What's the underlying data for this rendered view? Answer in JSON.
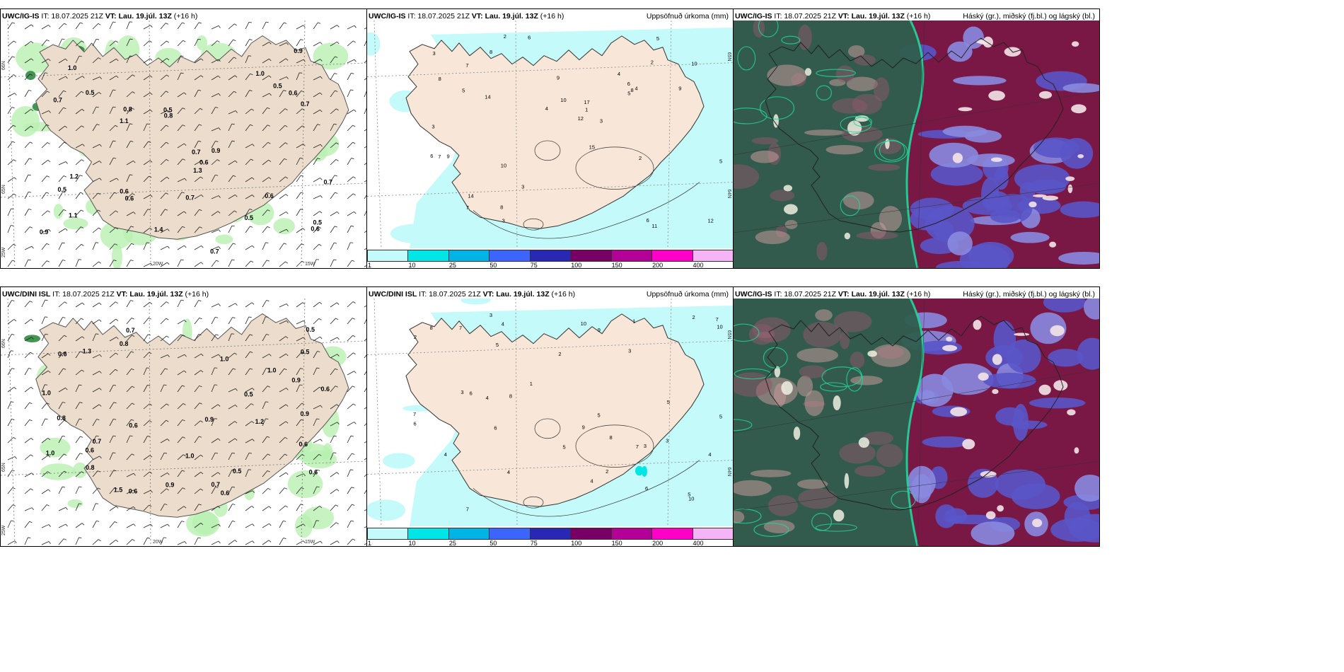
{
  "panels": [
    {
      "model": "UWC/IG-IS",
      "it": "IT: 18.07.2025 21Z",
      "vt": "VT: Lau. 19.júl. 13Z",
      "lead": "(+16 h)",
      "right": "",
      "kind": "wind",
      "labels": [
        "66N",
        "65N",
        "25W",
        "20W",
        "15W"
      ]
    },
    {
      "model": "UWC/IG-IS",
      "it": "IT: 18.07.2025 21Z",
      "vt": "VT: Lau. 19.júl. 13Z",
      "lead": "(+16 h)",
      "right": "Uppsöfnuð úrkoma (mm)",
      "kind": "precip",
      "labels": [
        "65N",
        "64N"
      ]
    },
    {
      "model": "UWC/IG-IS",
      "it": "IT: 18.07.2025 21Z",
      "vt": "VT: Lau. 19.júl. 13Z",
      "lead": "(+16 h)",
      "right": "Háský (gr.), miðský (fj.bl.) og lágský (bl.)",
      "kind": "cloud",
      "labels": []
    },
    {
      "model": "UWC/DINI ISL",
      "it": "IT: 18.07.2025 21Z",
      "vt": "VT: Lau. 19.júl. 13Z",
      "lead": "(+16 h)",
      "right": "",
      "kind": "wind",
      "labels": [
        "66N",
        "65N",
        "25W",
        "20W",
        "15W"
      ]
    },
    {
      "model": "UWC/DINI ISL",
      "it": "IT: 18.07.2025 21Z",
      "vt": "VT: Lau. 19.júl. 13Z",
      "lead": "(+16 h)",
      "right": "Uppsöfnuð úrkoma (mm)",
      "kind": "precip",
      "labels": [
        "65N",
        "64N"
      ]
    },
    {
      "model": "UWC/IG-IS",
      "it": "IT: 18.07.2025 21Z",
      "vt": "VT: Lau. 19.júl. 13Z",
      "lead": "(+16 h)",
      "right": "Háský (gr.), miðský (fj.bl.) og lágský (bl.)",
      "kind": "cloud",
      "labels": []
    }
  ],
  "colorbar": {
    "ticks": [
      "1",
      "10",
      "25",
      "50",
      "75",
      "100",
      "150",
      "200",
      "400"
    ],
    "colors": [
      "#c4fafa",
      "#00e6e6",
      "#00b4e6",
      "#3c64ff",
      "#2828b4",
      "#780064",
      "#b40096",
      "#ff00c8",
      "#f5b4f5"
    ]
  },
  "wind_values": {
    "p0": [
      "0.7",
      "0.7",
      "0.5",
      "1.1",
      "0.6",
      "0.8",
      "1.0",
      "0.7",
      "1.2",
      "0.5",
      "0.6",
      "0.9",
      "1.4",
      "0.5",
      "0.7",
      "1.3",
      "1.1",
      "0.6",
      "0.5",
      "0.5",
      "0.6",
      "0.8",
      "0.7",
      "1.0",
      "0.9",
      "0.6",
      "0.7",
      "0.5",
      "0.9",
      "0.6"
    ],
    "p3": [
      "0.6",
      "1.0",
      "1.5",
      "0.6",
      "0.9",
      "0.6",
      "0.8",
      "0.6",
      "0.9",
      "1.0",
      "0.7",
      "0.6",
      "0.9",
      "1.3",
      "0.6",
      "0.8",
      "1.0",
      "0.7",
      "0.5",
      "1.0",
      "0.8",
      "1.2",
      "0.5",
      "0.6",
      "0.5",
      "0.7",
      "0.9",
      "0.5",
      "1.0",
      "0.6"
    ]
  },
  "precip_values": {
    "p1": [
      "5",
      "12",
      "8",
      "10",
      "3",
      "6",
      "14",
      "7",
      "9",
      "4",
      "3",
      "2",
      "1",
      "6",
      "8",
      "10",
      "11",
      "9",
      "5",
      "7",
      "3",
      "17",
      "14",
      "15",
      "12",
      "10",
      "8",
      "6",
      "4",
      "2",
      "9",
      "5",
      "3",
      "7",
      "4",
      "6",
      "8",
      "3",
      "5",
      "2"
    ],
    "p4": [
      "2",
      "7",
      "3",
      "5",
      "4",
      "2",
      "1",
      "4",
      "5",
      "7",
      "8",
      "6",
      "3",
      "9",
      "10",
      "7",
      "4",
      "5",
      "6",
      "8",
      "10",
      "5",
      "3",
      "7",
      "9",
      "4",
      "2",
      "6",
      "5",
      "3",
      "4",
      "8",
      "10",
      "6",
      "5",
      "7",
      "3",
      "4",
      "2",
      "1"
    ]
  }
}
